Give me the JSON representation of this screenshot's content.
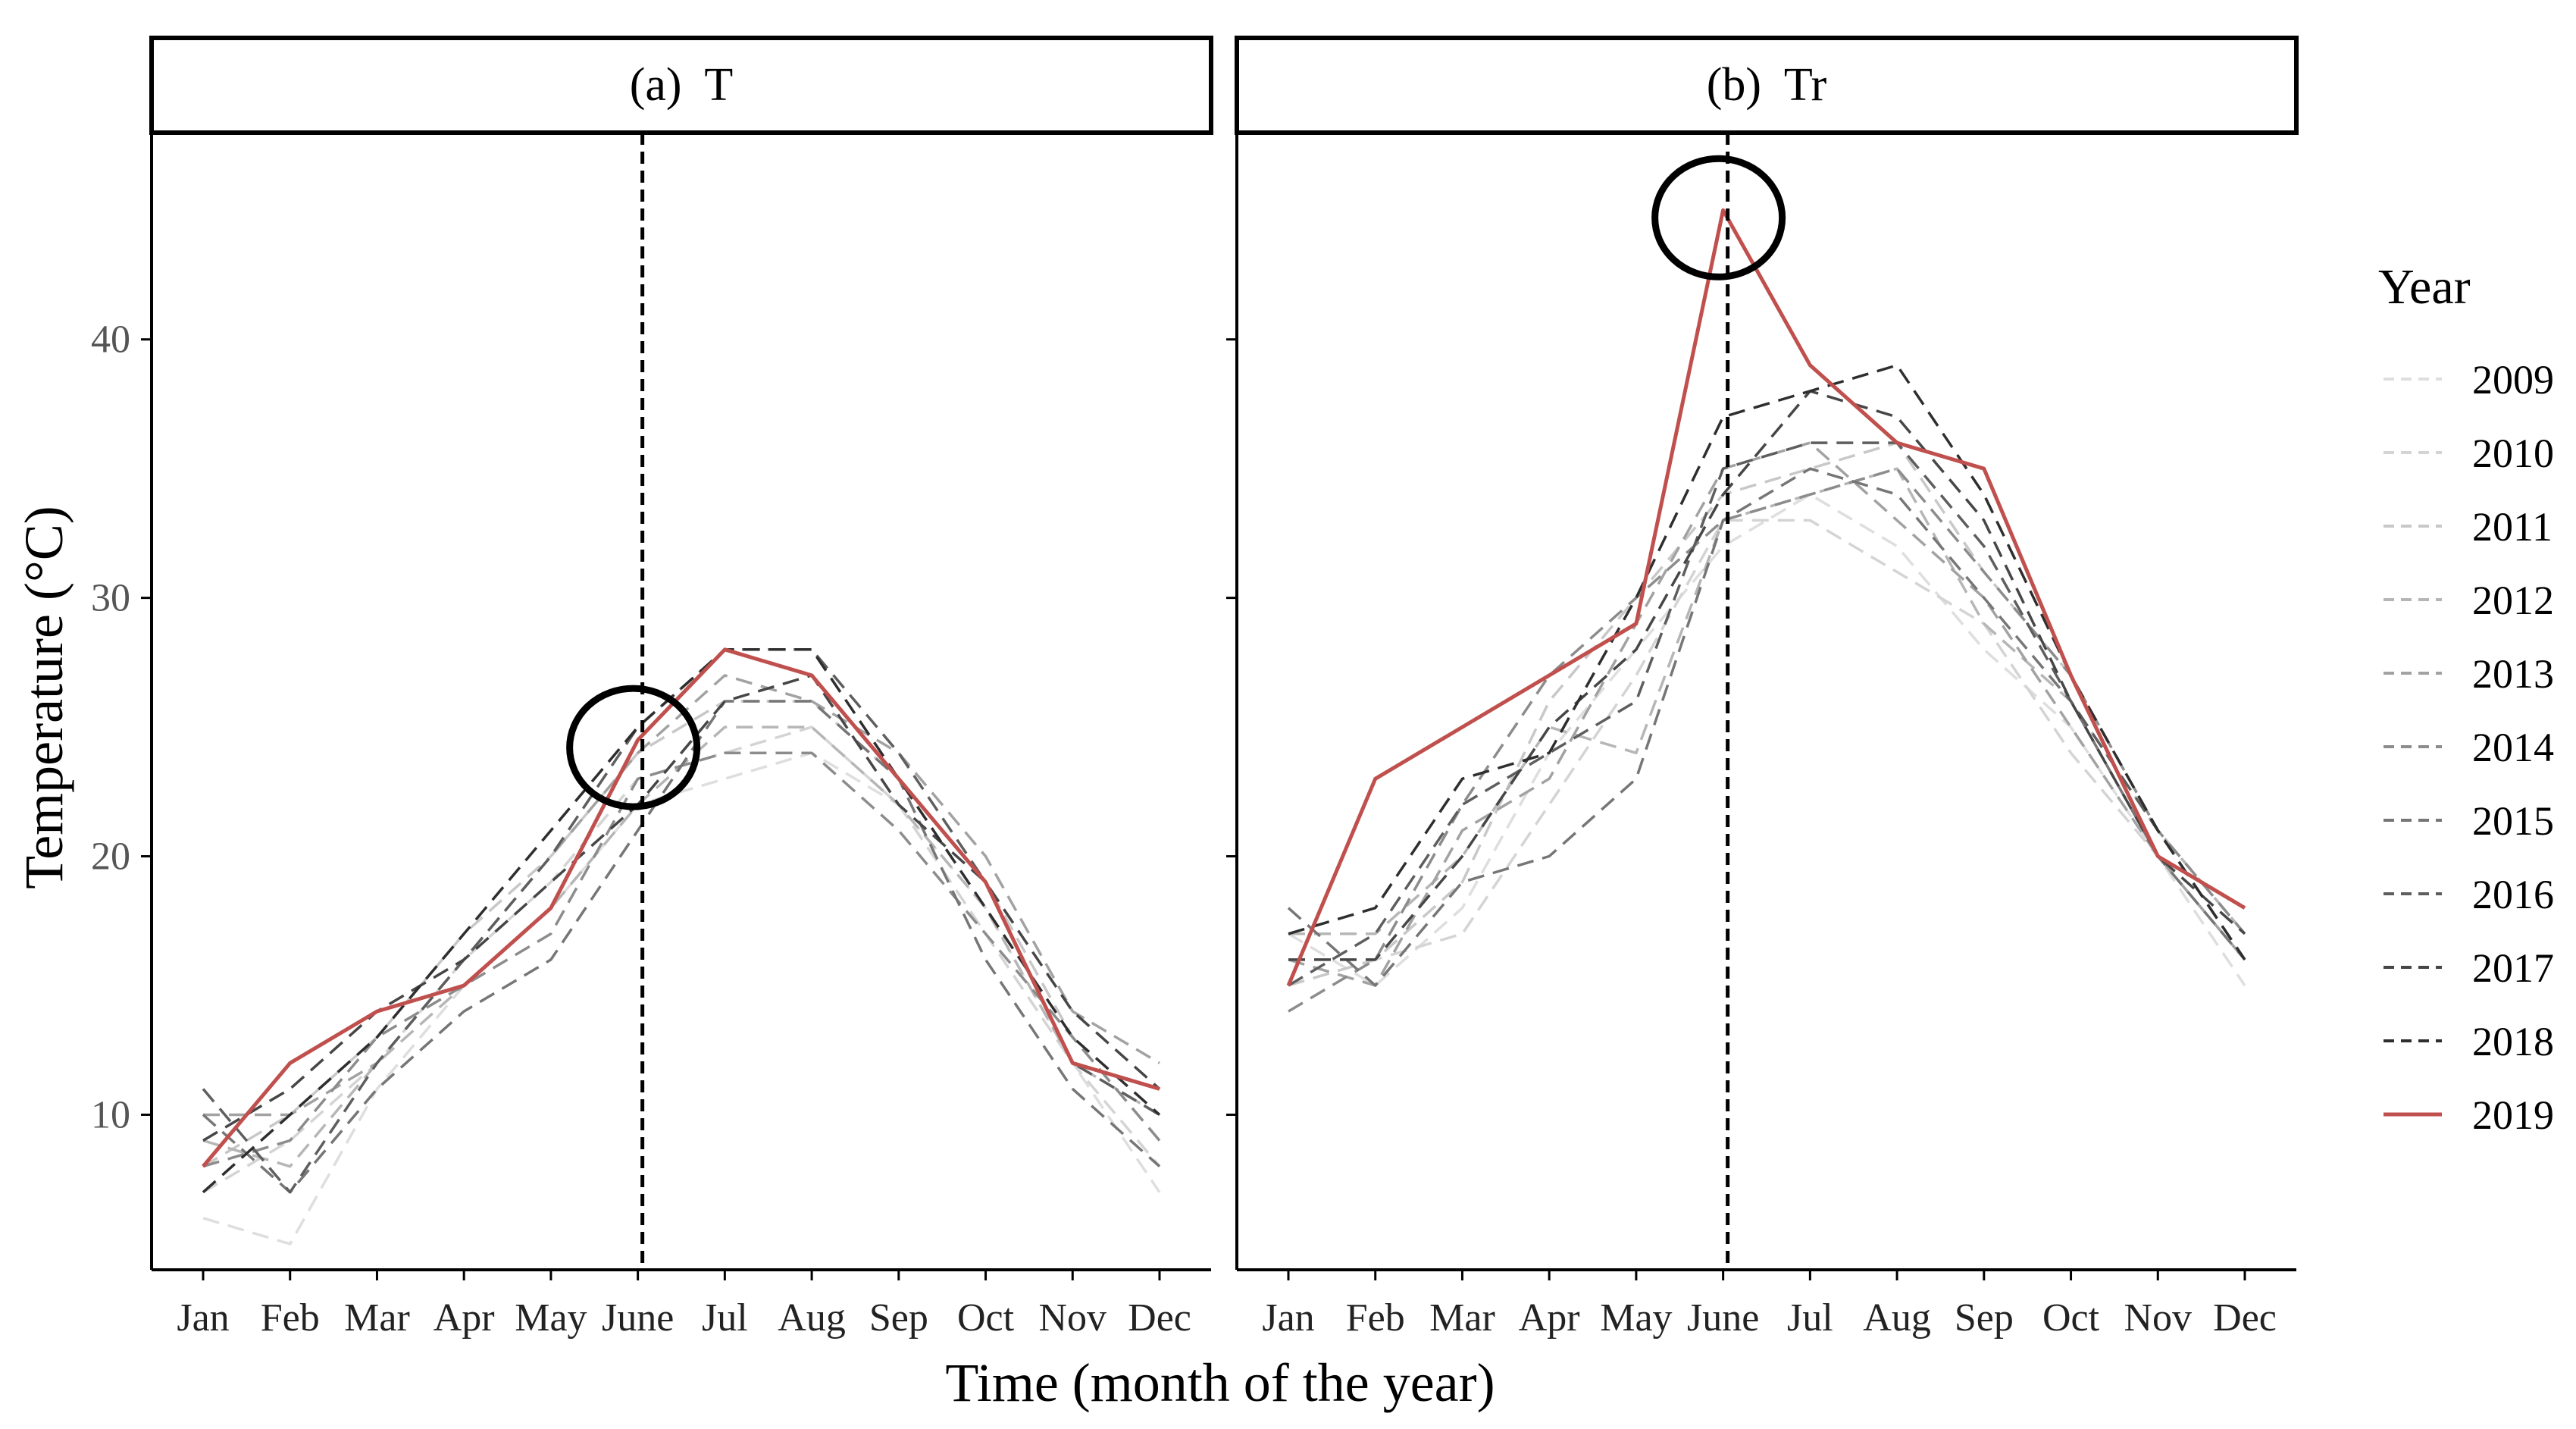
{
  "chart_data": {
    "type": "line",
    "xlabel": "Time (month of the year)",
    "ylabel": "Temperature (°C)",
    "ylim": [
      4,
      48
    ],
    "yticks": [
      10,
      20,
      30,
      40
    ],
    "categories": [
      "Jan",
      "Feb",
      "Mar",
      "Apr",
      "May",
      "June",
      "Jul",
      "Aug",
      "Sep",
      "Oct",
      "Nov",
      "Dec"
    ],
    "legend": {
      "title": "Year",
      "position": "right"
    },
    "series_styles": [
      {
        "name": "2009",
        "color": "#dedede",
        "dash": true
      },
      {
        "name": "2010",
        "color": "#d4d4d4",
        "dash": true
      },
      {
        "name": "2011",
        "color": "#c8c8c8",
        "dash": true
      },
      {
        "name": "2012",
        "color": "#b6b6b6",
        "dash": true
      },
      {
        "name": "2013",
        "color": "#a2a2a2",
        "dash": true
      },
      {
        "name": "2014",
        "color": "#8c8c8c",
        "dash": true
      },
      {
        "name": "2015",
        "color": "#767676",
        "dash": true
      },
      {
        "name": "2016",
        "color": "#5e5e5e",
        "dash": true
      },
      {
        "name": "2017",
        "color": "#464646",
        "dash": true
      },
      {
        "name": "2018",
        "color": "#2e2e2e",
        "dash": true
      },
      {
        "name": "2019",
        "color": "#c0504d",
        "dash": false
      }
    ],
    "panels": [
      {
        "strip": "(a)  T",
        "vline": "June",
        "highlight": {
          "month": "June",
          "value": 24.5
        },
        "series": [
          {
            "name": "2009",
            "values": [
              6,
              5,
              11,
              15,
              18,
              22,
              23,
              24,
              22,
              18,
              12,
              7
            ]
          },
          {
            "name": "2010",
            "values": [
              7,
              9,
              12,
              16,
              19,
              23,
              24,
              25,
              22,
              17,
              12,
              8
            ]
          },
          {
            "name": "2011",
            "values": [
              8,
              10,
              13,
              17,
              20,
              24,
              26,
              26,
              23,
              19,
              13,
              9
            ]
          },
          {
            "name": "2012",
            "values": [
              9,
              8,
              12,
              15,
              18,
              22,
              25,
              25,
              22,
              18,
              12,
              10
            ]
          },
          {
            "name": "2013",
            "values": [
              10,
              10,
              12,
              16,
              20,
              24,
              27,
              26,
              24,
              20,
              14,
              12
            ]
          },
          {
            "name": "2014",
            "values": [
              8,
              9,
              13,
              15,
              17,
              23,
              24,
              24,
              21,
              17,
              13,
              9
            ]
          },
          {
            "name": "2015",
            "values": [
              10,
              7,
              11,
              14,
              16,
              21,
              26,
              26,
              23,
              16,
              11,
              8
            ]
          },
          {
            "name": "2016",
            "values": [
              11,
              7,
              12,
              16,
              20,
              25,
              28,
              28,
              24,
              19,
              12,
              10
            ]
          },
          {
            "name": "2017",
            "values": [
              9,
              11,
              14,
              16,
              19,
              22,
              26,
              27,
              22,
              19,
              14,
              11
            ]
          },
          {
            "name": "2018",
            "values": [
              7,
              10,
              13,
              17,
              21,
              25,
              28,
              28,
              23,
              18,
              13,
              10
            ]
          },
          {
            "name": "2019",
            "values": [
              8,
              12,
              14,
              15,
              18,
              24.5,
              28,
              27,
              23,
              19,
              12,
              11
            ]
          }
        ]
      },
      {
        "strip": "(b)  Tr",
        "vline": "June",
        "highlight": {
          "month": "June",
          "value": 45
        },
        "series": [
          {
            "name": "2009",
            "values": [
              17,
              15,
              18,
              24,
              28,
              32,
              34,
              32,
              28,
              25,
              20,
              15
            ]
          },
          {
            "name": "2010",
            "values": [
              16,
              16,
              17,
              22,
              27,
              33,
              33,
              31,
              29,
              24,
              20,
              16
            ]
          },
          {
            "name": "2011",
            "values": [
              15,
              16,
              19,
              26,
              30,
              34,
              35,
              36,
              31,
              27,
              21,
              17
            ]
          },
          {
            "name": "2012",
            "values": [
              17,
              17,
              20,
              25,
              24,
              33,
              34,
              35,
              29,
              26,
              21,
              17
            ]
          },
          {
            "name": "2013",
            "values": [
              16,
              15,
              21,
              23,
              29,
              35,
              36,
              33,
              30,
              25,
              20,
              16
            ]
          },
          {
            "name": "2014",
            "values": [
              14,
              16,
              22,
              27,
              30,
              33,
              34,
              35,
              31,
              27,
              21,
              17
            ]
          },
          {
            "name": "2015",
            "values": [
              18,
              15,
              19,
              20,
              23,
              33,
              35,
              34,
              30,
              26,
              20,
              16
            ]
          },
          {
            "name": "2016",
            "values": [
              15,
              17,
              22,
              24,
              26,
              35,
              36,
              36,
              32,
              26,
              21,
              16
            ]
          },
          {
            "name": "2017",
            "values": [
              16,
              16,
              20,
              25,
              28,
              34,
              38,
              37,
              33,
              26,
              20,
              17
            ]
          },
          {
            "name": "2018",
            "values": [
              17,
              18,
              23,
              24,
              30,
              37,
              38,
              39,
              34,
              27,
              21,
              16
            ]
          },
          {
            "name": "2019",
            "values": [
              15,
              23,
              25,
              27,
              29,
              45,
              39,
              36,
              35,
              27,
              20,
              18
            ]
          }
        ]
      }
    ]
  }
}
